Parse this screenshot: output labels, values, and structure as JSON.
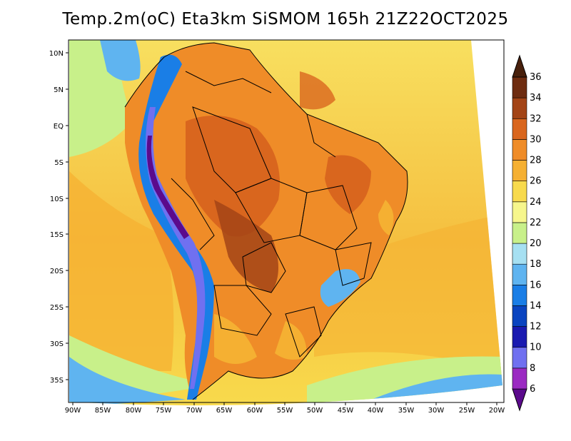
{
  "title": "Temp.2m(oC) Eta3km SiSMOM 165h 21Z22OCT2025",
  "lat_labels": [
    "10N",
    "5N",
    "EQ",
    "5S",
    "10S",
    "15S",
    "20S",
    "25S",
    "30S",
    "35S"
  ],
  "lon_labels": [
    "90W",
    "85W",
    "80W",
    "75W",
    "70W",
    "65W",
    "60W",
    "55W",
    "50W",
    "45W",
    "40W",
    "35W",
    "30W",
    "25W",
    "20W"
  ],
  "colorbar": {
    "labels": [
      "6",
      "8",
      "10",
      "12",
      "14",
      "16",
      "18",
      "20",
      "22",
      "24",
      "26",
      "28",
      "30",
      "32",
      "34",
      "36"
    ],
    "colors": [
      "#5b0a8c",
      "#9b2ac2",
      "#7070f0",
      "#1a1ab0",
      "#0a44c0",
      "#1a7ee6",
      "#5fb4f0",
      "#a6e0f2",
      "#c8f08a",
      "#f6f68c",
      "#f8da4c",
      "#f5b032",
      "#ef8c28",
      "#d9661e",
      "#a34416",
      "#6e2c10",
      "#48200c"
    ]
  },
  "colors": {
    "ocean_warm": "#f8da4c",
    "ocean_mid": "#f5b032",
    "ocean_cool": "#c8f08a",
    "land_hot": "#ef8c28",
    "land_very_hot": "#d9661e",
    "andes_cold": "#1a7ee6",
    "andes_very_cold": "#7070f0",
    "border": "#000000"
  }
}
